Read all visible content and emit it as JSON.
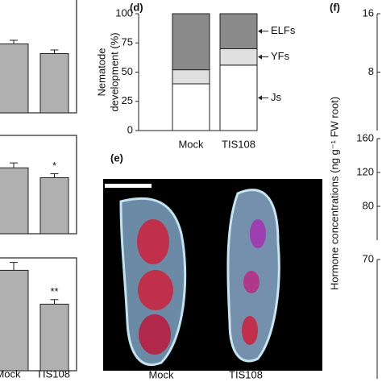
{
  "chart_data": [
    {
      "type": "bar",
      "ylim": [
        0,
        100
      ],
      "values": [
        57,
        49
      ],
      "errors": [
        3,
        3
      ],
      "color": "#b0b0b0"
    },
    {
      "type": "bar",
      "ylim": [
        0,
        100
      ],
      "values": [
        67,
        57
      ],
      "errors": [
        5,
        4
      ],
      "value_annotations": [
        null,
        "*"
      ],
      "color": "#b0b0b0"
    },
    {
      "type": "bar",
      "ylim": [
        0,
        100
      ],
      "categories": [
        "Mock",
        "TIS108"
      ],
      "values": [
        89,
        59
      ],
      "errors": [
        7,
        4
      ],
      "value_annotations": [
        null,
        "**"
      ],
      "color": "#b0b0b0"
    },
    {
      "type": "stacked",
      "title": "(d)",
      "ylabel": [
        "Nematode",
        "development (%)"
      ],
      "categories": [
        "Mock",
        "TIS108"
      ],
      "series": [
        {
          "name": "Js",
          "color": "#ffffff",
          "values": [
            40,
            56
          ]
        },
        {
          "name": "YFs",
          "color": "#e0e0e0",
          "values": [
            12,
            14
          ]
        },
        {
          "name": "ELFs",
          "color": "#8a8a8a",
          "values": [
            48,
            30
          ]
        }
      ],
      "ylim": [
        0,
        100
      ],
      "yticks": [
        0,
        25,
        50,
        75,
        100
      ]
    },
    {
      "type": "image",
      "title": "(e)",
      "categories": [
        "Mock",
        "TIS108"
      ]
    },
    {
      "type": "axes",
      "title": "(f)",
      "ylabel": "Hormone concentrations (ng g⁻¹ FW root)",
      "axes": [
        {
          "ylim": [
            0,
            16
          ],
          "yticks": [
            8,
            16
          ]
        },
        {
          "ylim": [
            40,
            160
          ],
          "yticks": [
            80,
            120,
            160
          ]
        },
        {
          "ylim": [
            0,
            70
          ],
          "yticks": [
            70
          ]
        }
      ]
    }
  ]
}
